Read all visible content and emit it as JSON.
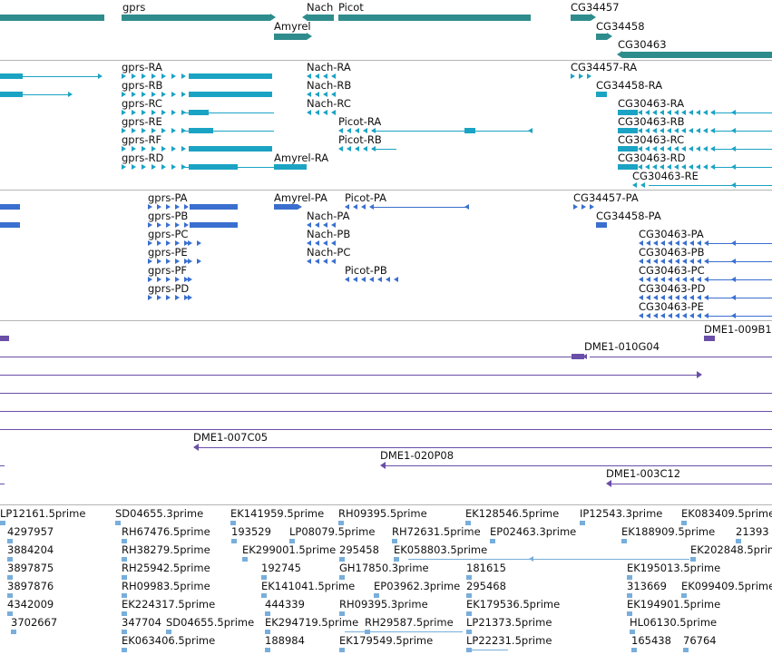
{
  "colors": {
    "gene": "#2f8c8c",
    "transcript": "#1ba3c4",
    "protein": "#3a6fcf",
    "clone": "#6a4ea8",
    "est": "#78aedb",
    "separator": "#b4b4b4"
  },
  "genes": [
    "gprs",
    "Nach",
    "Picot",
    "Amyrel",
    "CG34457",
    "CG34458",
    "CG30463"
  ],
  "transcripts": [
    "gprs-RA",
    "gprs-RB",
    "gprs-RC",
    "gprs-RE",
    "gprs-RF",
    "gprs-RD",
    "Nach-RA",
    "Nach-RB",
    "Nach-RC",
    "Picot-RA",
    "Picot-RB",
    "Amyrel-RA",
    "CG34457-RA",
    "CG34458-RA",
    "CG30463-RA",
    "CG30463-RB",
    "CG30463-RC",
    "CG30463-RD",
    "CG30463-RE"
  ],
  "proteins": [
    "gprs-PA",
    "gprs-PB",
    "gprs-PC",
    "gprs-PE",
    "gprs-PF",
    "gprs-PD",
    "Amyrel-PA",
    "Picot-PA",
    "Nach-PA",
    "Nach-PB",
    "Nach-PC",
    "Picot-PB",
    "CG34457-PA",
    "CG34458-PA",
    "CG30463-PA",
    "CG30463-PB",
    "CG30463-PC",
    "CG30463-PD",
    "CG30463-PE"
  ],
  "clones": [
    "DME1-009B1",
    "DME1-010G04",
    "DME1-007C05",
    "DME1-020P08",
    "DME1-003C12"
  ],
  "ests": [
    "LP12161.5prime",
    "SD04655.3prime",
    "EK141959.5prime",
    "RH09395.5prime",
    "EK128546.5prime",
    "IP12543.3prime",
    "EK083409.5prime",
    "4297957",
    "RH67476.5prime",
    "193529",
    "LP08079.5prime",
    "RH72631.5prime",
    "EP02463.3prime",
    "EK188909.5prime",
    "21393",
    "3884204",
    "RH38279.5prime",
    "EK299001.5prime",
    "295458",
    "EK058803.5prime",
    "EK202848.5prime",
    "3897875",
    "RH25942.5prime",
    "192745",
    "GH17850.3prime",
    "181615",
    "EK195013.5prime",
    "3897876",
    "RH09983.5prime",
    "EK141041.5prime",
    "EP03962.3prime",
    "295468",
    "313669",
    "EK099409.5prime",
    "4342009",
    "EK224317.5prime",
    "444339",
    "RH09395.3prime",
    "EK179536.5prime",
    "EK194901.5prime",
    "3702667",
    "347704",
    "SD04655.5prime",
    "EK294719.5prime",
    "RH29587.5prime",
    "LP21373.5prime",
    "HL06130.5prime",
    "EK063406.5prime",
    "188984",
    "EK179549.5prime",
    "LP22231.5prime",
    "165438",
    "76764"
  ]
}
